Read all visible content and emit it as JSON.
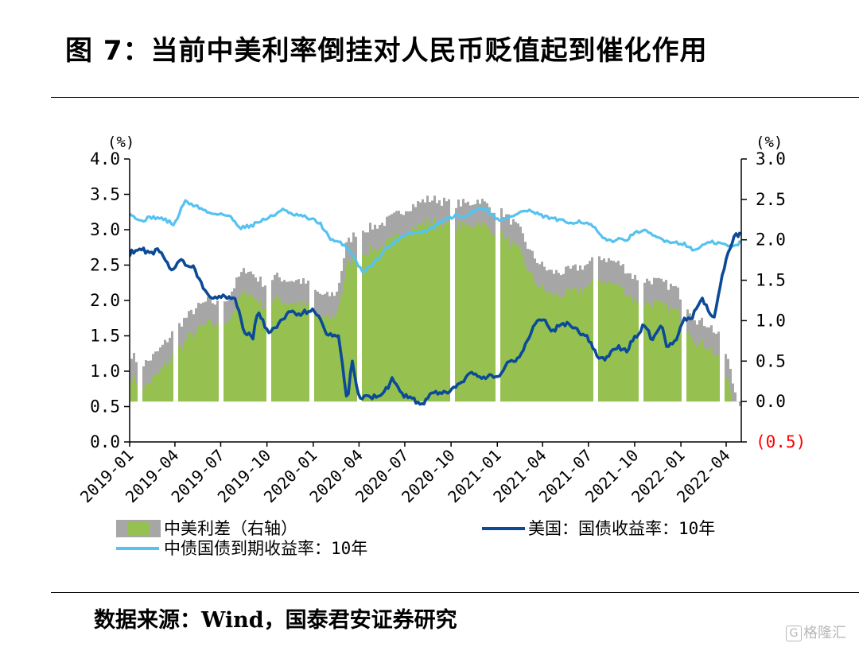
{
  "header": {
    "title": "图 7：当前中美利率倒挂对人民币贬值起到催化作用"
  },
  "footer": {
    "source": "数据来源：Wind，国泰君安证券研究"
  },
  "watermark": {
    "text": "格隆汇"
  },
  "colors": {
    "spread_fill": "#96c150",
    "spread_band": "#a6a6a6",
    "us_yield": "#0b4a97",
    "cn_yield": "#55c2f0",
    "negative_label": "#ff0000"
  },
  "chart_data": {
    "type": "line",
    "left_axis": {
      "unit": "(%)",
      "ylim": [
        0,
        4
      ],
      "ticks": [
        "4.0",
        "3.5",
        "3.0",
        "2.5",
        "2.0",
        "1.5",
        "1.0",
        "0.5",
        "0.0"
      ]
    },
    "right_axis": {
      "unit": "(%)",
      "ylim": [
        -0.5,
        3
      ],
      "ticks": [
        "3.0",
        "2.5",
        "2.0",
        "1.5",
        "1.0",
        "0.5",
        "0.0",
        "(0.5)"
      ]
    },
    "x_tick_labels": [
      "2019-01",
      "2019-04",
      "2019-07",
      "2019-10",
      "2020-01",
      "2020-04",
      "2020-07",
      "2020-10",
      "2021-01",
      "2021-04",
      "2021-07",
      "2021-10",
      "2022-01",
      "2022-04"
    ],
    "x_range": [
      "2019-01-01",
      "2022-05-01"
    ],
    "legend": {
      "spread": "中美利差（右轴）",
      "us": "美国：国债收益率：10年",
      "cn": "中债国债到期收益率：10年"
    },
    "series": [
      {
        "name": "中美利差（右轴）",
        "axis": "right",
        "style": "bar",
        "points": [
          [
            "2019-01-01",
            0.6
          ],
          [
            "2019-01-20",
            0.45
          ],
          [
            "2019-02-05",
            0.5
          ],
          [
            "2019-03-01",
            0.65
          ],
          [
            "2019-03-25",
            0.85
          ],
          [
            "2019-04-15",
            1.0
          ],
          [
            "2019-05-10",
            1.15
          ],
          [
            "2019-06-05",
            1.25
          ],
          [
            "2019-06-25",
            1.2
          ],
          [
            "2019-07-15",
            1.3
          ],
          [
            "2019-08-05",
            1.55
          ],
          [
            "2019-08-20",
            1.65
          ],
          [
            "2019-09-05",
            1.55
          ],
          [
            "2019-09-25",
            1.45
          ],
          [
            "2019-10-15",
            1.55
          ],
          [
            "2019-11-10",
            1.5
          ],
          [
            "2019-12-01",
            1.5
          ],
          [
            "2019-12-20",
            1.45
          ],
          [
            "2020-01-05",
            1.35
          ],
          [
            "2020-01-25",
            1.3
          ],
          [
            "2020-02-15",
            1.35
          ],
          [
            "2020-03-05",
            1.95
          ],
          [
            "2020-03-25",
            2.1
          ],
          [
            "2020-04-20",
            2.15
          ],
          [
            "2020-05-15",
            2.2
          ],
          [
            "2020-06-10",
            2.3
          ],
          [
            "2020-07-05",
            2.4
          ],
          [
            "2020-07-25",
            2.45
          ],
          [
            "2020-08-10",
            2.5
          ],
          [
            "2020-09-01",
            2.5
          ],
          [
            "2020-09-25",
            2.45
          ],
          [
            "2020-10-15",
            2.45
          ],
          [
            "2020-11-05",
            2.45
          ],
          [
            "2020-11-25",
            2.5
          ],
          [
            "2020-12-15",
            2.4
          ],
          [
            "2021-01-05",
            2.35
          ],
          [
            "2021-01-25",
            2.25
          ],
          [
            "2021-02-15",
            2.1
          ],
          [
            "2021-03-05",
            1.85
          ],
          [
            "2021-03-25",
            1.7
          ],
          [
            "2021-04-15",
            1.6
          ],
          [
            "2021-05-10",
            1.6
          ],
          [
            "2021-06-05",
            1.65
          ],
          [
            "2021-06-30",
            1.7
          ],
          [
            "2021-07-20",
            1.8
          ],
          [
            "2021-08-10",
            1.75
          ],
          [
            "2021-09-01",
            1.7
          ],
          [
            "2021-09-25",
            1.55
          ],
          [
            "2021-10-15",
            1.5
          ],
          [
            "2021-11-05",
            1.5
          ],
          [
            "2021-11-30",
            1.45
          ],
          [
            "2021-12-20",
            1.4
          ],
          [
            "2022-01-10",
            1.2
          ],
          [
            "2022-02-01",
            1.0
          ],
          [
            "2022-02-25",
            0.95
          ],
          [
            "2022-03-15",
            0.8
          ],
          [
            "2022-04-01",
            0.55
          ],
          [
            "2022-04-15",
            0.15
          ],
          [
            "2022-04-28",
            -0.05
          ]
        ]
      },
      {
        "name": "美国：国债收益率：10年",
        "axis": "left",
        "style": "line",
        "points": [
          [
            "2019-01-01",
            2.66
          ],
          [
            "2019-01-15",
            2.73
          ],
          [
            "2019-02-15",
            2.68
          ],
          [
            "2019-03-01",
            2.72
          ],
          [
            "2019-03-25",
            2.44
          ],
          [
            "2019-04-15",
            2.56
          ],
          [
            "2019-05-10",
            2.45
          ],
          [
            "2019-06-01",
            2.13
          ],
          [
            "2019-06-20",
            2.02
          ],
          [
            "2019-07-10",
            2.06
          ],
          [
            "2019-07-31",
            2.02
          ],
          [
            "2019-08-15",
            1.58
          ],
          [
            "2019-09-03",
            1.46
          ],
          [
            "2019-09-13",
            1.88
          ],
          [
            "2019-10-03",
            1.53
          ],
          [
            "2019-11-01",
            1.72
          ],
          [
            "2019-11-15",
            1.83
          ],
          [
            "2019-12-10",
            1.82
          ],
          [
            "2020-01-02",
            1.88
          ],
          [
            "2020-01-31",
            1.51
          ],
          [
            "2020-02-20",
            1.52
          ],
          [
            "2020-03-09",
            0.54
          ],
          [
            "2020-03-18",
            1.18
          ],
          [
            "2020-04-01",
            0.62
          ],
          [
            "2020-04-20",
            0.63
          ],
          [
            "2020-05-15",
            0.64
          ],
          [
            "2020-06-08",
            0.9
          ],
          [
            "2020-06-25",
            0.67
          ],
          [
            "2020-07-15",
            0.62
          ],
          [
            "2020-08-04",
            0.51
          ],
          [
            "2020-08-25",
            0.69
          ],
          [
            "2020-09-15",
            0.68
          ],
          [
            "2020-10-10",
            0.77
          ],
          [
            "2020-11-10",
            0.96
          ],
          [
            "2020-12-01",
            0.92
          ],
          [
            "2020-12-31",
            0.92
          ],
          [
            "2021-01-20",
            1.09
          ],
          [
            "2021-02-15",
            1.21
          ],
          [
            "2021-03-01",
            1.42
          ],
          [
            "2021-03-19",
            1.72
          ],
          [
            "2021-04-01",
            1.74
          ],
          [
            "2021-04-20",
            1.56
          ],
          [
            "2021-05-12",
            1.69
          ],
          [
            "2021-06-01",
            1.61
          ],
          [
            "2021-06-30",
            1.47
          ],
          [
            "2021-07-20",
            1.19
          ],
          [
            "2021-08-04",
            1.17
          ],
          [
            "2021-08-25",
            1.34
          ],
          [
            "2021-09-15",
            1.3
          ],
          [
            "2021-10-20",
            1.66
          ],
          [
            "2021-11-05",
            1.45
          ],
          [
            "2021-11-24",
            1.68
          ],
          [
            "2021-12-03",
            1.35
          ],
          [
            "2021-12-20",
            1.42
          ],
          [
            "2022-01-05",
            1.71
          ],
          [
            "2022-01-25",
            1.78
          ],
          [
            "2022-02-10",
            2.04
          ],
          [
            "2022-03-07",
            1.73
          ],
          [
            "2022-03-28",
            2.47
          ],
          [
            "2022-04-08",
            2.72
          ],
          [
            "2022-04-20",
            2.93
          ],
          [
            "2022-04-29",
            2.94
          ]
        ]
      },
      {
        "name": "中债国债到期收益率：10年",
        "axis": "left",
        "style": "line",
        "points": [
          [
            "2019-01-01",
            3.25
          ],
          [
            "2019-01-20",
            3.12
          ],
          [
            "2019-02-15",
            3.18
          ],
          [
            "2019-03-10",
            3.15
          ],
          [
            "2019-03-31",
            3.07
          ],
          [
            "2019-04-20",
            3.4
          ],
          [
            "2019-05-15",
            3.33
          ],
          [
            "2019-06-10",
            3.23
          ],
          [
            "2019-06-30",
            3.23
          ],
          [
            "2019-07-20",
            3.18
          ],
          [
            "2019-08-10",
            3.03
          ],
          [
            "2019-08-31",
            3.06
          ],
          [
            "2019-09-20",
            3.13
          ],
          [
            "2019-10-15",
            3.2
          ],
          [
            "2019-10-31",
            3.3
          ],
          [
            "2019-11-15",
            3.22
          ],
          [
            "2019-12-10",
            3.19
          ],
          [
            "2019-12-31",
            3.14
          ],
          [
            "2020-01-15",
            3.09
          ],
          [
            "2020-02-05",
            2.85
          ],
          [
            "2020-03-01",
            2.8
          ],
          [
            "2020-03-20",
            2.65
          ],
          [
            "2020-04-07",
            2.4
          ],
          [
            "2020-04-30",
            2.52
          ],
          [
            "2020-05-20",
            2.7
          ],
          [
            "2020-06-15",
            2.85
          ],
          [
            "2020-07-05",
            2.95
          ],
          [
            "2020-07-31",
            2.96
          ],
          [
            "2020-08-20",
            3.0
          ],
          [
            "2020-09-15",
            3.13
          ],
          [
            "2020-10-10",
            3.2
          ],
          [
            "2020-10-30",
            3.18
          ],
          [
            "2020-11-20",
            3.3
          ],
          [
            "2020-12-10",
            3.3
          ],
          [
            "2020-12-31",
            3.15
          ],
          [
            "2021-01-20",
            3.15
          ],
          [
            "2021-02-15",
            3.25
          ],
          [
            "2021-03-05",
            3.27
          ],
          [
            "2021-03-31",
            3.19
          ],
          [
            "2021-04-20",
            3.16
          ],
          [
            "2021-05-20",
            3.1
          ],
          [
            "2021-06-15",
            3.12
          ],
          [
            "2021-07-10",
            3.05
          ],
          [
            "2021-07-31",
            2.86
          ],
          [
            "2021-08-20",
            2.85
          ],
          [
            "2021-09-15",
            2.87
          ],
          [
            "2021-10-15",
            3.0
          ],
          [
            "2021-11-05",
            2.92
          ],
          [
            "2021-11-30",
            2.85
          ],
          [
            "2021-12-20",
            2.82
          ],
          [
            "2022-01-10",
            2.8
          ],
          [
            "2022-01-25",
            2.7
          ],
          [
            "2022-02-15",
            2.79
          ],
          [
            "2022-03-05",
            2.82
          ],
          [
            "2022-03-25",
            2.8
          ],
          [
            "2022-04-15",
            2.75
          ],
          [
            "2022-04-29",
            2.83
          ]
        ]
      }
    ]
  }
}
